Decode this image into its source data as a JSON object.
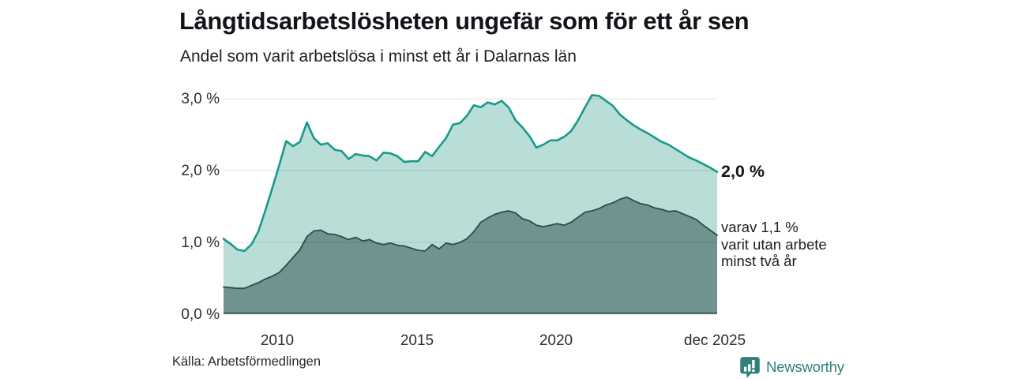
{
  "chart_data": {
    "type": "area",
    "title": "Långtidsarbetslösheten ungefär som för ett år sen",
    "subtitle": "Andel som varit arbetslösa i minst ett år i Dalarnas län",
    "unit": "%",
    "legend": "none",
    "grid": "horizontal",
    "x_axis": {
      "start_year": 2008.0,
      "step_years": 0.25,
      "end_label_year": 2025.92,
      "tick_labels": [
        "2010",
        "2015",
        "2020",
        "dec 2025"
      ],
      "tick_years": [
        2010,
        2015,
        2020,
        2025.92
      ]
    },
    "y_axis": {
      "tick_labels": [
        "0,0 %",
        "1,0 %",
        "2,0 %",
        "3,0 %"
      ],
      "tick_values": [
        0,
        1,
        2,
        3
      ],
      "range": [
        0,
        3.2
      ]
    },
    "colors": {
      "outer_line": "#179a8a",
      "outer_fill": "#b9ded8",
      "inner_line": "#2e4c48",
      "inner_fill": "#6f938e",
      "gridline": "rgba(0,0,0,0.12)",
      "baseline": "#4f7770"
    },
    "series": [
      {
        "name": "Andel arbetslösa minst ett år",
        "end_label": "2,0 %",
        "end_value": 2.0,
        "values": [
          1.05,
          0.98,
          0.9,
          0.88,
          0.97,
          1.15,
          1.44,
          1.75,
          2.07,
          2.41,
          2.34,
          2.4,
          2.67,
          2.45,
          2.36,
          2.38,
          2.29,
          2.27,
          2.16,
          2.23,
          2.21,
          2.2,
          2.14,
          2.25,
          2.24,
          2.2,
          2.12,
          2.13,
          2.13,
          2.26,
          2.2,
          2.33,
          2.45,
          2.64,
          2.66,
          2.76,
          2.91,
          2.88,
          2.95,
          2.92,
          2.97,
          2.88,
          2.7,
          2.6,
          2.48,
          2.32,
          2.36,
          2.42,
          2.42,
          2.47,
          2.55,
          2.7,
          2.88,
          3.05,
          3.04,
          2.97,
          2.9,
          2.78,
          2.7,
          2.63,
          2.57,
          2.52,
          2.46,
          2.4,
          2.36,
          2.3,
          2.24,
          2.18,
          2.14,
          2.09,
          2.04,
          1.98
        ]
      },
      {
        "name": "Varav utan arbete minst två år",
        "end_label_lines": [
          "varav 1,1 %",
          "varit utan arbete",
          "minst två år"
        ],
        "end_value": 1.1,
        "values": [
          0.38,
          0.37,
          0.36,
          0.36,
          0.4,
          0.44,
          0.49,
          0.53,
          0.58,
          0.68,
          0.79,
          0.9,
          1.08,
          1.16,
          1.17,
          1.12,
          1.11,
          1.08,
          1.04,
          1.07,
          1.02,
          1.04,
          0.99,
          0.97,
          0.99,
          0.96,
          0.95,
          0.92,
          0.89,
          0.88,
          0.97,
          0.91,
          0.99,
          0.97,
          1.0,
          1.05,
          1.15,
          1.28,
          1.34,
          1.39,
          1.42,
          1.44,
          1.41,
          1.33,
          1.3,
          1.24,
          1.22,
          1.24,
          1.26,
          1.24,
          1.28,
          1.35,
          1.42,
          1.44,
          1.47,
          1.52,
          1.55,
          1.6,
          1.63,
          1.58,
          1.54,
          1.52,
          1.48,
          1.46,
          1.43,
          1.44,
          1.4,
          1.36,
          1.32,
          1.24,
          1.17,
          1.1
        ]
      }
    ]
  },
  "footer": {
    "source": "Källa: Arbetsförmedlingen",
    "brand": "Newsworthy",
    "brand_icon": "newsworthy-bar-chart-bubble-icon"
  }
}
